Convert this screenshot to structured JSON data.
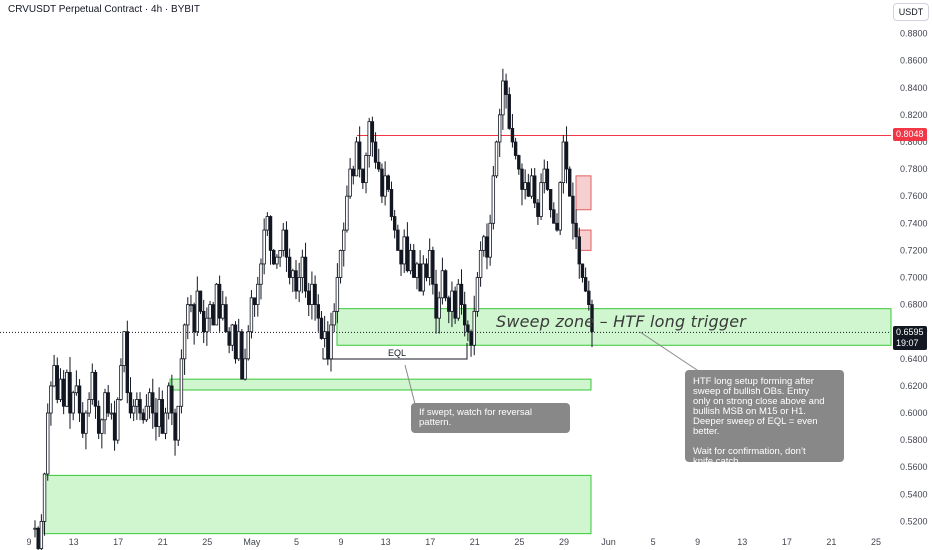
{
  "title": "CRVUSDT Perpetual Contract · 4h · BYBIT",
  "unit": "USDT",
  "chart_data": {
    "type": "candlestick",
    "ylim": [
      0.51,
      0.89
    ],
    "price_ticks": [
      "0.8800",
      "0.8600",
      "0.8400",
      "0.8200",
      "0.8000",
      "0.7800",
      "0.7600",
      "0.7400",
      "0.7200",
      "0.7000",
      "0.6800",
      "0.6600",
      "0.6400",
      "0.6200",
      "0.6000",
      "0.5800",
      "0.5600",
      "0.5400",
      "0.5200"
    ],
    "time_ticks": [
      "9",
      "13",
      "17",
      "21",
      "25",
      "May",
      "5",
      "9",
      "13",
      "17",
      "21",
      "25",
      "29",
      "Jun",
      "5",
      "9",
      "13",
      "17",
      "21",
      "25"
    ],
    "resistance_level": 0.8048,
    "resistance_label": "0.8048",
    "last_price": "0.6595",
    "countdown": "19:07",
    "candle_color": "#131722",
    "up_fill": "#ffffff",
    "series_closes": [
      0.515,
      0.5,
      0.52,
      0.555,
      0.6,
      0.62,
      0.635,
      0.61,
      0.625,
      0.605,
      0.63,
      0.6,
      0.615,
      0.62,
      0.6,
      0.585,
      0.6,
      0.61,
      0.63,
      0.605,
      0.585,
      0.595,
      0.615,
      0.6,
      0.6,
      0.58,
      0.61,
      0.635,
      0.66,
      0.615,
      0.6,
      0.605,
      0.61,
      0.6,
      0.595,
      0.605,
      0.615,
      0.6,
      0.59,
      0.61,
      0.585,
      0.6,
      0.62,
      0.6,
      0.58,
      0.605,
      0.64,
      0.665,
      0.68,
      0.68,
      0.66,
      0.69,
      0.675,
      0.66,
      0.67,
      0.68,
      0.665,
      0.695,
      0.67,
      0.68,
      0.66,
      0.65,
      0.665,
      0.64,
      0.66,
      0.625,
      0.64,
      0.66,
      0.685,
      0.68,
      0.695,
      0.71,
      0.735,
      0.745,
      0.72,
      0.71,
      0.715,
      0.72,
      0.735,
      0.715,
      0.7,
      0.705,
      0.69,
      0.7,
      0.715,
      0.69,
      0.68,
      0.695,
      0.68,
      0.67,
      0.655,
      0.66,
      0.64,
      0.665,
      0.675,
      0.7,
      0.72,
      0.735,
      0.76,
      0.78,
      0.775,
      0.8,
      0.78,
      0.77,
      0.79,
      0.815,
      0.8,
      0.785,
      0.78,
      0.76,
      0.775,
      0.765,
      0.745,
      0.735,
      0.72,
      0.71,
      0.73,
      0.705,
      0.72,
      0.7,
      0.71,
      0.69,
      0.71,
      0.7,
      0.72,
      0.695,
      0.67,
      0.685,
      0.705,
      0.685,
      0.675,
      0.69,
      0.67,
      0.695,
      0.68,
      0.665,
      0.66,
      0.65,
      0.675,
      0.7,
      0.72,
      0.73,
      0.715,
      0.74,
      0.775,
      0.8,
      0.82,
      0.845,
      0.835,
      0.81,
      0.8,
      0.79,
      0.78,
      0.765,
      0.77,
      0.76,
      0.775,
      0.755,
      0.745,
      0.77,
      0.78,
      0.765,
      0.75,
      0.74,
      0.735,
      0.77,
      0.8,
      0.78,
      0.76,
      0.74,
      0.73,
      0.71,
      0.7,
      0.69,
      0.68,
      0.66
    ]
  },
  "zones": [
    {
      "name": "sweep-zone",
      "top": 0.677,
      "bottom": 0.65,
      "fill": "#c8f5c8",
      "border": "#37c837"
    },
    {
      "name": "bullish-ob-lower",
      "top": 0.625,
      "bottom": 0.617,
      "fill": "#c8f5c8",
      "border": "#37c837"
    },
    {
      "name": "bullish-ob-deep",
      "top": 0.554,
      "bottom": 0.511,
      "fill": "#c8f5c8",
      "border": "#37c837"
    },
    {
      "name": "supply-box-upper",
      "top": 0.775,
      "bottom": 0.75,
      "fill": "#f5c8c8",
      "border": "#e06060"
    },
    {
      "name": "supply-box-lower",
      "top": 0.735,
      "bottom": 0.72,
      "fill": "#f5c8c8",
      "border": "#e06060"
    }
  ],
  "annotations": {
    "sweep_zone_label": "Sweep zone – HTF long trigger",
    "eql_label": "EQL",
    "note_eql": [
      "If swept, watch for reversal",
      "pattern."
    ],
    "note_htf": [
      "HTF long setup forming after",
      "sweep of bullish OBs. Entry",
      "only on strong close above and",
      "bullish MSB on M15 or H1.",
      "Deeper sweep of EQL = even",
      "better.",
      "",
      "Wait for confirmation, don’t",
      "knife catch."
    ]
  },
  "colors": {
    "resistance": "#f23645",
    "last_price": "#131722",
    "zone_green": "#37c837",
    "axis_text": "#434651"
  }
}
